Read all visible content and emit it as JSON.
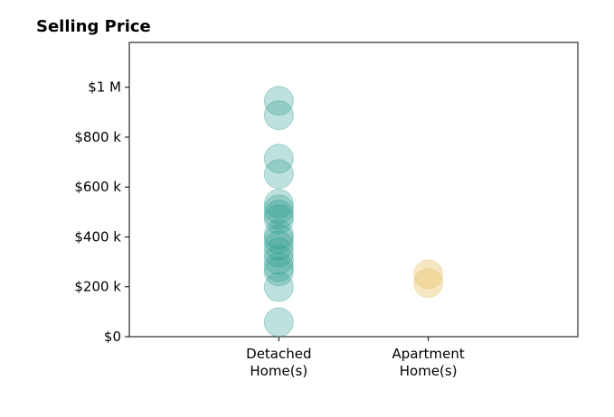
{
  "chart_data": {
    "type": "strip",
    "title": "Selling Price",
    "categories": [
      "Detached\nHome(s)",
      "Apartment\nHome(s)"
    ],
    "colors": [
      "#2a9d8f",
      "#e9c46a"
    ],
    "values": [
      [
        946000,
        888000,
        714000,
        652000,
        533000,
        511000,
        489000,
        471000,
        409000,
        391000,
        366000,
        337000,
        308000,
        279000,
        261000,
        199000,
        58000
      ],
      [
        250000,
        215000
      ]
    ],
    "xlim": [
      -1,
      2
    ],
    "ylim": [
      0,
      1180000
    ],
    "yticks": [
      {
        "value": 0,
        "label": "$0"
      },
      {
        "value": 200000,
        "label": "$200 k"
      },
      {
        "value": 400000,
        "label": "$400 k"
      },
      {
        "value": 600000,
        "label": "$600 k"
      },
      {
        "value": 800000,
        "label": "$800 k"
      },
      {
        "value": 1000000,
        "label": "$1 M"
      }
    ]
  }
}
